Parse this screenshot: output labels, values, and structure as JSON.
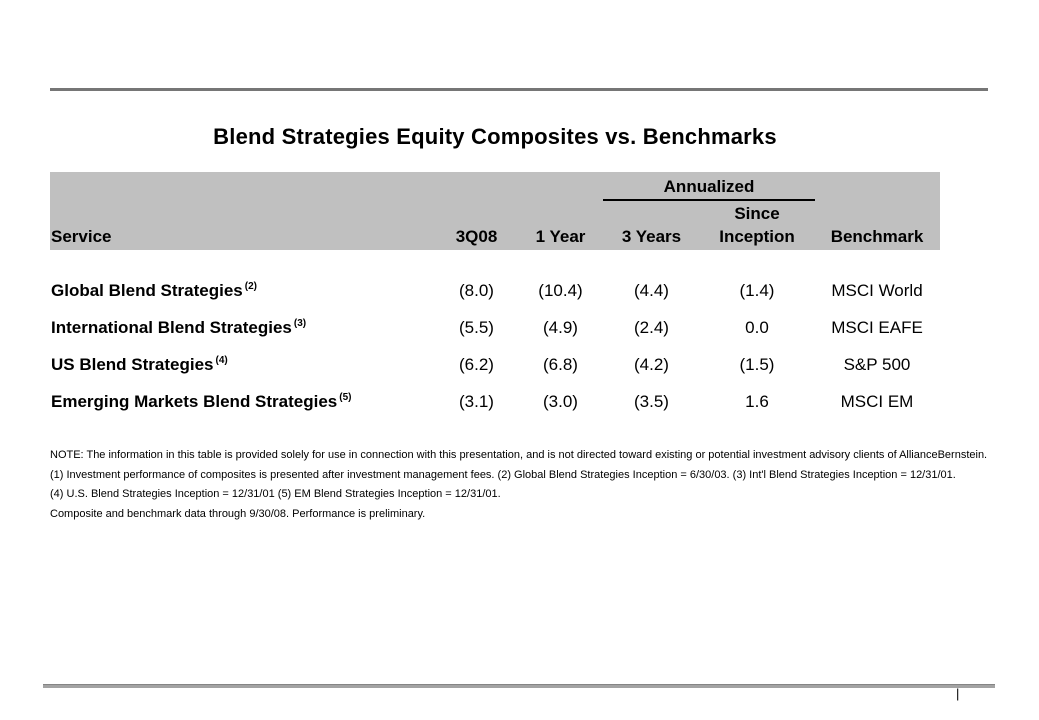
{
  "slide": {
    "title": "Blend Strategies Equity Composites vs. Benchmarks"
  },
  "table": {
    "annualized_label": "Annualized",
    "since_label": "Since",
    "headers": {
      "service": "Service",
      "q": "3Q08",
      "year1": "1 Year",
      "years3": "3 Years",
      "inception": "Inception",
      "benchmark": "Benchmark"
    },
    "rows": [
      {
        "service": "Global Blend Strategies",
        "footnote": "(2)",
        "q": "(8.0)",
        "year1": "(10.4)",
        "years3": "(4.4)",
        "inception": "(1.4)",
        "benchmark": "MSCI World"
      },
      {
        "service": "International Blend Strategies",
        "footnote": "(3)",
        "q": "(5.5)",
        "year1": "(4.9)",
        "years3": "(2.4)",
        "inception": "0.0",
        "benchmark": "MSCI EAFE"
      },
      {
        "service": "US Blend Strategies",
        "footnote": "(4)",
        "q": "(6.2)",
        "year1": "(6.8)",
        "years3": "(4.2)",
        "inception": "(1.5)",
        "benchmark": "S&P 500"
      },
      {
        "service": "Emerging Markets Blend Strategies",
        "footnote": "(5)",
        "q": "(3.1)",
        "year1": "(3.0)",
        "years3": "(3.5)",
        "inception": "1.6",
        "benchmark": "MSCI EM"
      }
    ]
  },
  "notes": {
    "line1": "NOTE:  The information in this table is provided solely for use in connection with this presentation, and is not directed toward existing or potential investment advisory clients of AllianceBernstein.",
    "line2": "(1) Investment performance of composites is presented after investment management fees. (2) Global Blend Strategies Inception = 6/30/03. (3) Int'l Blend Strategies Inception = 12/31/01.",
    "line3": "(4) U.S. Blend Strategies Inception = 12/31/01 (5) EM Blend Strategies Inception = 12/31/01.",
    "line4": "Composite and benchmark data through 9/30/08. Performance is preliminary."
  },
  "footer": {
    "page_marker": "|"
  },
  "colors": {
    "header_bg": "#c0c0c0",
    "top_rule": "#767676",
    "bottom_rule": "#a3a3a3",
    "text": "#000000"
  }
}
